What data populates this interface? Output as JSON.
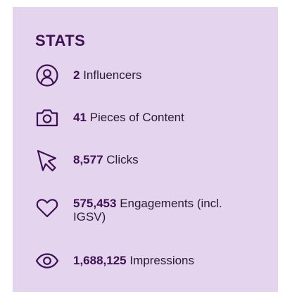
{
  "title": "STATS",
  "colors": {
    "card_background": "#e5d4ee",
    "accent": "#3d1152"
  },
  "stats": [
    {
      "icon": "user-icon",
      "value": "2",
      "label": "Influencers"
    },
    {
      "icon": "camera-icon",
      "value": "41",
      "label": "Pieces of Content"
    },
    {
      "icon": "cursor-icon",
      "value": "8,577",
      "label": "Clicks"
    },
    {
      "icon": "heart-icon",
      "value": "575,453",
      "label": "Engagements (incl. IGSV)"
    },
    {
      "icon": "eye-icon",
      "value": "1,688,125",
      "label": "Impressions"
    }
  ]
}
